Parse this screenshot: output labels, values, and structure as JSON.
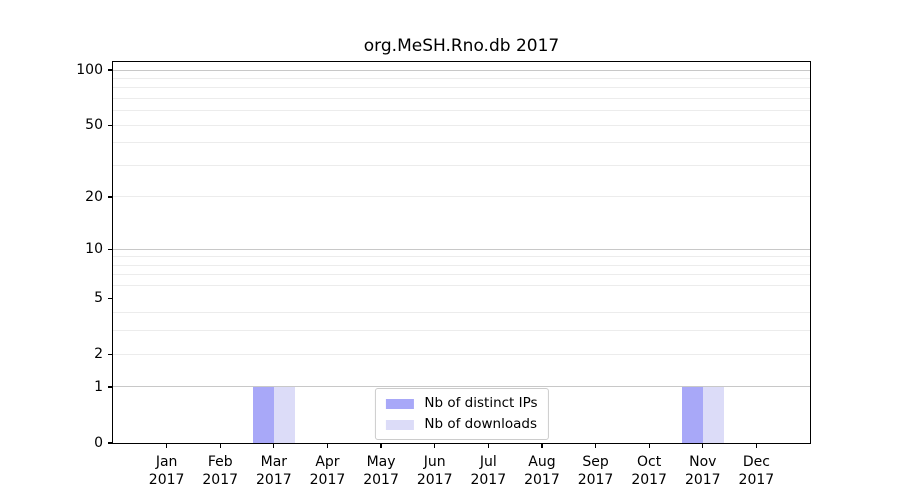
{
  "chart_data": {
    "type": "bar",
    "title": "org.MeSH.Rno.db 2017",
    "categories": [
      "Jan",
      "Feb",
      "Mar",
      "Apr",
      "May",
      "Jun",
      "Jul",
      "Aug",
      "Sep",
      "Oct",
      "Nov",
      "Dec"
    ],
    "category_year": "2017",
    "series": [
      {
        "name": "Nb of distinct IPs",
        "color": "#a8a8f8",
        "values": [
          0,
          0,
          1,
          0,
          0,
          0,
          0,
          0,
          0,
          0,
          1,
          0
        ]
      },
      {
        "name": "Nb of downloads",
        "color": "#dcdcf8",
        "values": [
          0,
          0,
          1,
          0,
          0,
          0,
          0,
          0,
          0,
          0,
          1,
          0
        ]
      }
    ],
    "yscale": "log1p",
    "ylim": [
      0,
      110
    ],
    "yticks": [
      0,
      1,
      2,
      5,
      10,
      20,
      50,
      100
    ],
    "major_gridlines": [
      1,
      10,
      100
    ],
    "minor_gridlines": [
      2,
      3,
      4,
      6,
      7,
      8,
      9,
      20,
      30,
      40,
      50,
      60,
      70,
      80,
      90
    ],
    "legend_position": "bottom-center",
    "colors": {
      "major_grid": "#c8c8c8",
      "minor_grid": "#ececec",
      "spine": "#000000"
    }
  }
}
